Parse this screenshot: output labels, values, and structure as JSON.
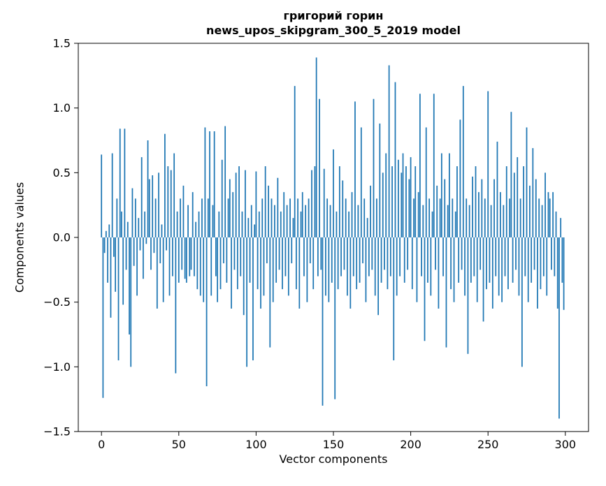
{
  "chart_data": {
    "type": "bar",
    "title_line1": "григорий горин",
    "title_line2": "news_upos_skipgram_300_5_2019 model",
    "xlabel": "Vector components",
    "ylabel": "Components values",
    "xlim": [
      -15,
      315
    ],
    "ylim": [
      -1.5,
      1.5
    ],
    "xticks": [
      0,
      50,
      100,
      150,
      200,
      250,
      300
    ],
    "yticks": [
      -1.5,
      -1.0,
      -0.5,
      0.0,
      0.5,
      1.0,
      1.5
    ],
    "grid": false,
    "legend": "none",
    "bar_color": "#1f77b4",
    "bar_width_data_units": 0.8,
    "values": [
      0.64,
      -1.24,
      -0.12,
      0.05,
      -0.35,
      0.1,
      -0.62,
      0.65,
      -0.15,
      -0.42,
      0.3,
      -0.95,
      0.84,
      0.2,
      -0.52,
      0.84,
      -0.25,
      0.12,
      -0.75,
      -1.0,
      0.38,
      -0.22,
      0.3,
      -0.45,
      0.15,
      -0.1,
      0.62,
      -0.32,
      0.2,
      -0.05,
      0.75,
      0.45,
      -0.25,
      0.48,
      -0.12,
      0.3,
      -0.55,
      0.5,
      -0.2,
      0.1,
      -0.5,
      0.8,
      -0.1,
      0.55,
      -0.45,
      0.52,
      -0.3,
      0.65,
      -1.05,
      0.2,
      -0.35,
      0.3,
      -0.25,
      0.4,
      -0.32,
      -0.35,
      0.25,
      -0.3,
      -0.25,
      0.35,
      -0.3,
      0.12,
      -0.4,
      0.2,
      -0.45,
      0.3,
      -0.5,
      0.85,
      -1.15,
      0.3,
      0.82,
      -0.45,
      0.25,
      0.82,
      -0.3,
      -0.5,
      0.2,
      -0.4,
      0.6,
      -0.2,
      0.86,
      -0.35,
      0.3,
      0.45,
      -0.55,
      0.35,
      -0.25,
      0.5,
      -0.4,
      0.55,
      -0.3,
      0.2,
      -0.6,
      0.52,
      -1.0,
      0.15,
      -0.35,
      0.25,
      -0.95,
      0.1,
      0.51,
      -0.4,
      0.2,
      -0.55,
      0.3,
      -0.45,
      0.55,
      -0.2,
      0.4,
      -0.85,
      0.3,
      -0.5,
      0.25,
      -0.35,
      0.46,
      -0.25,
      0.2,
      -0.4,
      0.35,
      -0.3,
      0.25,
      -0.45,
      0.3,
      -0.2,
      0.15,
      1.17,
      -0.4,
      0.3,
      -0.55,
      0.2,
      0.35,
      -0.3,
      0.25,
      -0.5,
      0.3,
      -0.2,
      0.52,
      -0.4,
      0.55,
      1.39,
      -0.3,
      1.07,
      -0.25,
      -1.3,
      0.53,
      -0.45,
      0.3,
      -0.5,
      0.25,
      -0.35,
      0.68,
      -1.25,
      0.2,
      -0.4,
      0.55,
      -0.3,
      0.44,
      -0.25,
      0.3,
      -0.45,
      0.2,
      -0.55,
      0.35,
      -0.3,
      1.05,
      -0.4,
      0.25,
      -0.35,
      0.85,
      -0.2,
      0.3,
      -0.5,
      0.15,
      -0.3,
      0.4,
      -0.25,
      1.07,
      -0.45,
      0.3,
      -0.6,
      0.88,
      -0.35,
      0.5,
      -0.25,
      0.65,
      -0.4,
      1.33,
      -0.3,
      0.55,
      -0.95,
      1.2,
      -0.45,
      0.6,
      -0.3,
      0.5,
      0.65,
      -0.35,
      0.55,
      -0.25,
      0.45,
      0.62,
      -0.4,
      0.3,
      0.55,
      -0.5,
      0.35,
      1.11,
      -0.3,
      0.25,
      -0.8,
      0.85,
      -0.35,
      0.3,
      -0.45,
      0.2,
      1.11,
      -0.25,
      0.4,
      -0.55,
      0.3,
      0.65,
      -0.3,
      0.45,
      -0.85,
      0.25,
      0.65,
      -0.4,
      0.3,
      -0.5,
      0.2,
      0.55,
      -0.35,
      0.91,
      -0.25,
      1.17,
      -0.45,
      0.3,
      -0.9,
      0.25,
      -0.35,
      0.47,
      -0.3,
      0.55,
      -0.5,
      0.35,
      -0.25,
      0.45,
      -0.65,
      0.3,
      -0.4,
      1.13,
      -0.35,
      0.25,
      -0.55,
      0.45,
      -0.3,
      0.74,
      -0.45,
      0.35,
      -0.5,
      0.25,
      -0.3,
      0.55,
      -0.4,
      0.3,
      0.97,
      -0.35,
      0.5,
      -0.25,
      0.62,
      -0.45,
      0.3,
      -1.0,
      0.55,
      -0.3,
      0.85,
      -0.5,
      0.4,
      -0.35,
      0.69,
      -0.25,
      0.45,
      -0.55,
      0.3,
      -0.4,
      0.25,
      -0.3,
      0.5,
      -0.45,
      0.35,
      0.3,
      -0.25,
      0.35,
      -0.3,
      0.2,
      -0.55,
      -1.4,
      0.15,
      -0.35,
      -0.56
    ]
  }
}
